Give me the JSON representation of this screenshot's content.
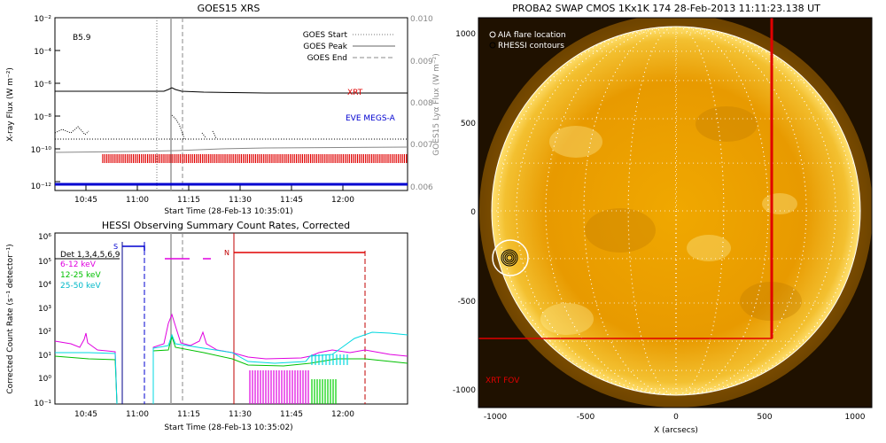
{
  "goes": {
    "title": "GOES15 XRS",
    "class_label": "B5.9",
    "ylabel_left": "X-ray Flux (W m⁻²)",
    "ylabel_right": "GOES15 Lyα Flux (W m⁻²)",
    "xlabel": "Start Time (28-Feb-13 10:35:01)",
    "xticks": [
      "10:45",
      "11:00",
      "11:15",
      "11:30",
      "11:45",
      "12:00"
    ],
    "yticks_left": [
      "10⁻²",
      "10⁻⁴",
      "10⁻⁶",
      "10⁻⁸",
      "10⁻¹⁰",
      "10⁻¹²"
    ],
    "yticks_right": [
      "0.010",
      "0.009",
      "0.008",
      "0.007",
      "0.006"
    ],
    "legend": [
      "GOES Start",
      "GOES Peak",
      "GOES End"
    ],
    "label_xrt": "XRT",
    "label_eve": "EVE MEGS-A",
    "colors": {
      "xrt": "#e00000",
      "eve": "#0000d0",
      "lya": "#888888"
    }
  },
  "hessi": {
    "title": "HESSI Observing Summary Count Rates, Corrected",
    "ylabel": "Corrected Count Rate (s⁻¹ detector⁻¹)",
    "xlabel": "Start Time (28-Feb-13 10:35:02)",
    "xticks": [
      "10:45",
      "11:00",
      "11:15",
      "11:30",
      "11:45",
      "12:00"
    ],
    "yticks": [
      "10⁶",
      "10⁵",
      "10⁴",
      "10³",
      "10²",
      "10¹",
      "10⁰",
      "10⁻¹"
    ],
    "legend": [
      {
        "label": "Det 1,3,4,5,6,9",
        "color": "#000000"
      },
      {
        "label": "6-12 keV",
        "color": "#e000e0"
      },
      {
        "label": "12-25 keV",
        "color": "#00c000"
      },
      {
        "label": "25-50 keV",
        "color": "#00d8e0"
      }
    ],
    "marker_s": "S",
    "marker_n": "N"
  },
  "swap": {
    "title": "PROBA2 SWAP CMOS 1Kx1K 174 28-Feb-2013 11:11:23.138 UT",
    "legend_aia": "AIA flare location",
    "legend_rhessi": "RHESSI contours",
    "xlabel": "X (arcsecs)",
    "xticks": [
      "-1000",
      "-500",
      "0",
      "500",
      "1000"
    ],
    "yticks": [
      "1000",
      "500",
      "0",
      "-500",
      "-1000"
    ],
    "fov_label": "XRT FOV",
    "colors": {
      "sun": "#e8a000",
      "fov": "#e00000"
    }
  }
}
